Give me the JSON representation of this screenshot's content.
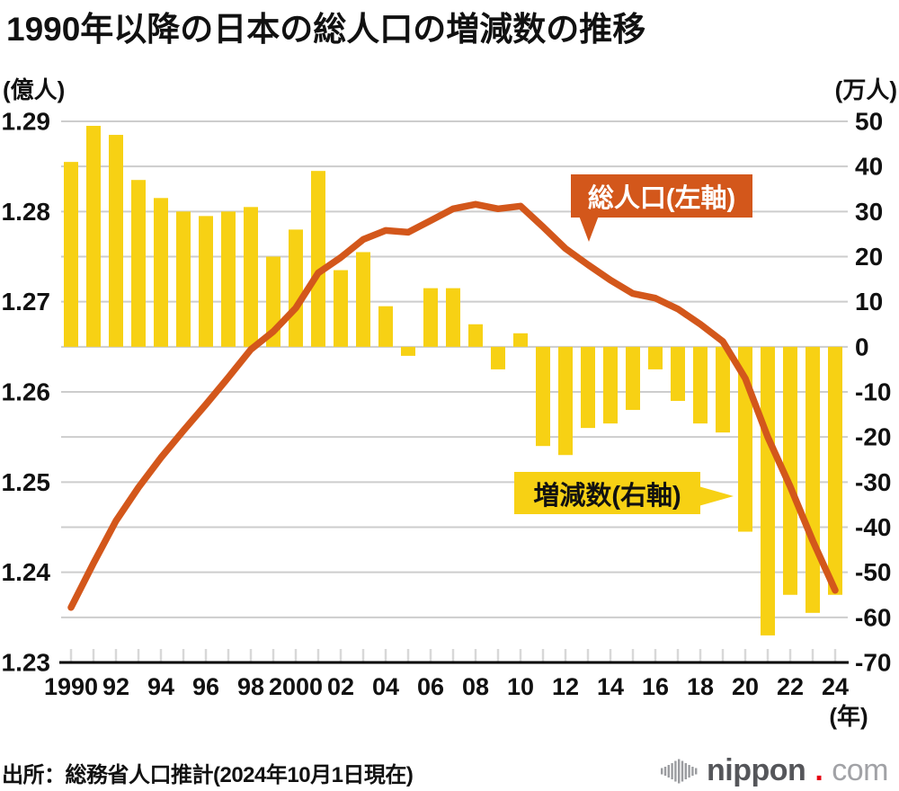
{
  "title": "1990年以降の日本の総人口の増減数の推移",
  "left_axis": {
    "unit": "(億人)",
    "ticks": [
      "1.29",
      "1.28",
      "1.27",
      "1.26",
      "1.25",
      "1.24",
      "1.23"
    ]
  },
  "right_axis": {
    "unit": "(万人)",
    "ticks": [
      "50",
      "40",
      "30",
      "20",
      "10",
      "0",
      "-10",
      "-20",
      "-30",
      "-40",
      "-50",
      "-60",
      "-70"
    ]
  },
  "x_axis": {
    "unit": "(年)",
    "labels": [
      "1990",
      "92",
      "94",
      "96",
      "98",
      "2000",
      "02",
      "04",
      "06",
      "08",
      "10",
      "12",
      "14",
      "16",
      "18",
      "20",
      "22",
      "24"
    ]
  },
  "callouts": {
    "line": "総人口(左軸)",
    "bar": "増減数(右軸)"
  },
  "source": "出所：総務省人口推計(2024年10月1日現在)",
  "logo": {
    "name": "nippon",
    "dot": ".",
    "tld": "com"
  },
  "colors": {
    "bar": "#F7D114",
    "line": "#D3571B",
    "grid": "#CDCDCD",
    "tick": "#D8D8D8",
    "axis": "#000000",
    "text": "#111111"
  },
  "chart_data": {
    "type": "combo",
    "categories": [
      1990,
      1991,
      1992,
      1993,
      1994,
      1995,
      1996,
      1997,
      1998,
      1999,
      2000,
      2001,
      2002,
      2003,
      2004,
      2005,
      2006,
      2007,
      2008,
      2009,
      2010,
      2011,
      2012,
      2013,
      2014,
      2015,
      2016,
      2017,
      2018,
      2019,
      2020,
      2021,
      2022,
      2023,
      2024
    ],
    "series": [
      {
        "name": "総人口(左軸)",
        "type": "line",
        "axis": "left",
        "unit": "億人",
        "values": [
          1.2361,
          1.241,
          1.2457,
          1.2494,
          1.2527,
          1.2557,
          1.2586,
          1.2616,
          1.2647,
          1.2667,
          1.2693,
          1.2732,
          1.2749,
          1.2769,
          1.2779,
          1.2777,
          1.279,
          1.2803,
          1.2808,
          1.2803,
          1.2806,
          1.2783,
          1.2759,
          1.2741,
          1.2724,
          1.2709,
          1.2704,
          1.2692,
          1.2675,
          1.2656,
          1.2615,
          1.255,
          1.2495,
          1.2435,
          1.238
        ]
      },
      {
        "name": "増減数(右軸)",
        "type": "bar",
        "axis": "right",
        "unit": "万人",
        "values": [
          41,
          49,
          47,
          37,
          33,
          30,
          29,
          30,
          31,
          20,
          26,
          39,
          17,
          21,
          9,
          -2,
          13,
          13,
          5,
          -5,
          3,
          -22,
          -24,
          -18,
          -17,
          -14,
          -5,
          -12,
          -17,
          -19,
          -41,
          -64,
          -55,
          -59,
          -55
        ]
      }
    ],
    "left_ylim": [
      1.23,
      1.29
    ],
    "right_ylim": [
      -70,
      50
    ],
    "grid": true,
    "legend_position": "callouts-on-plot"
  }
}
